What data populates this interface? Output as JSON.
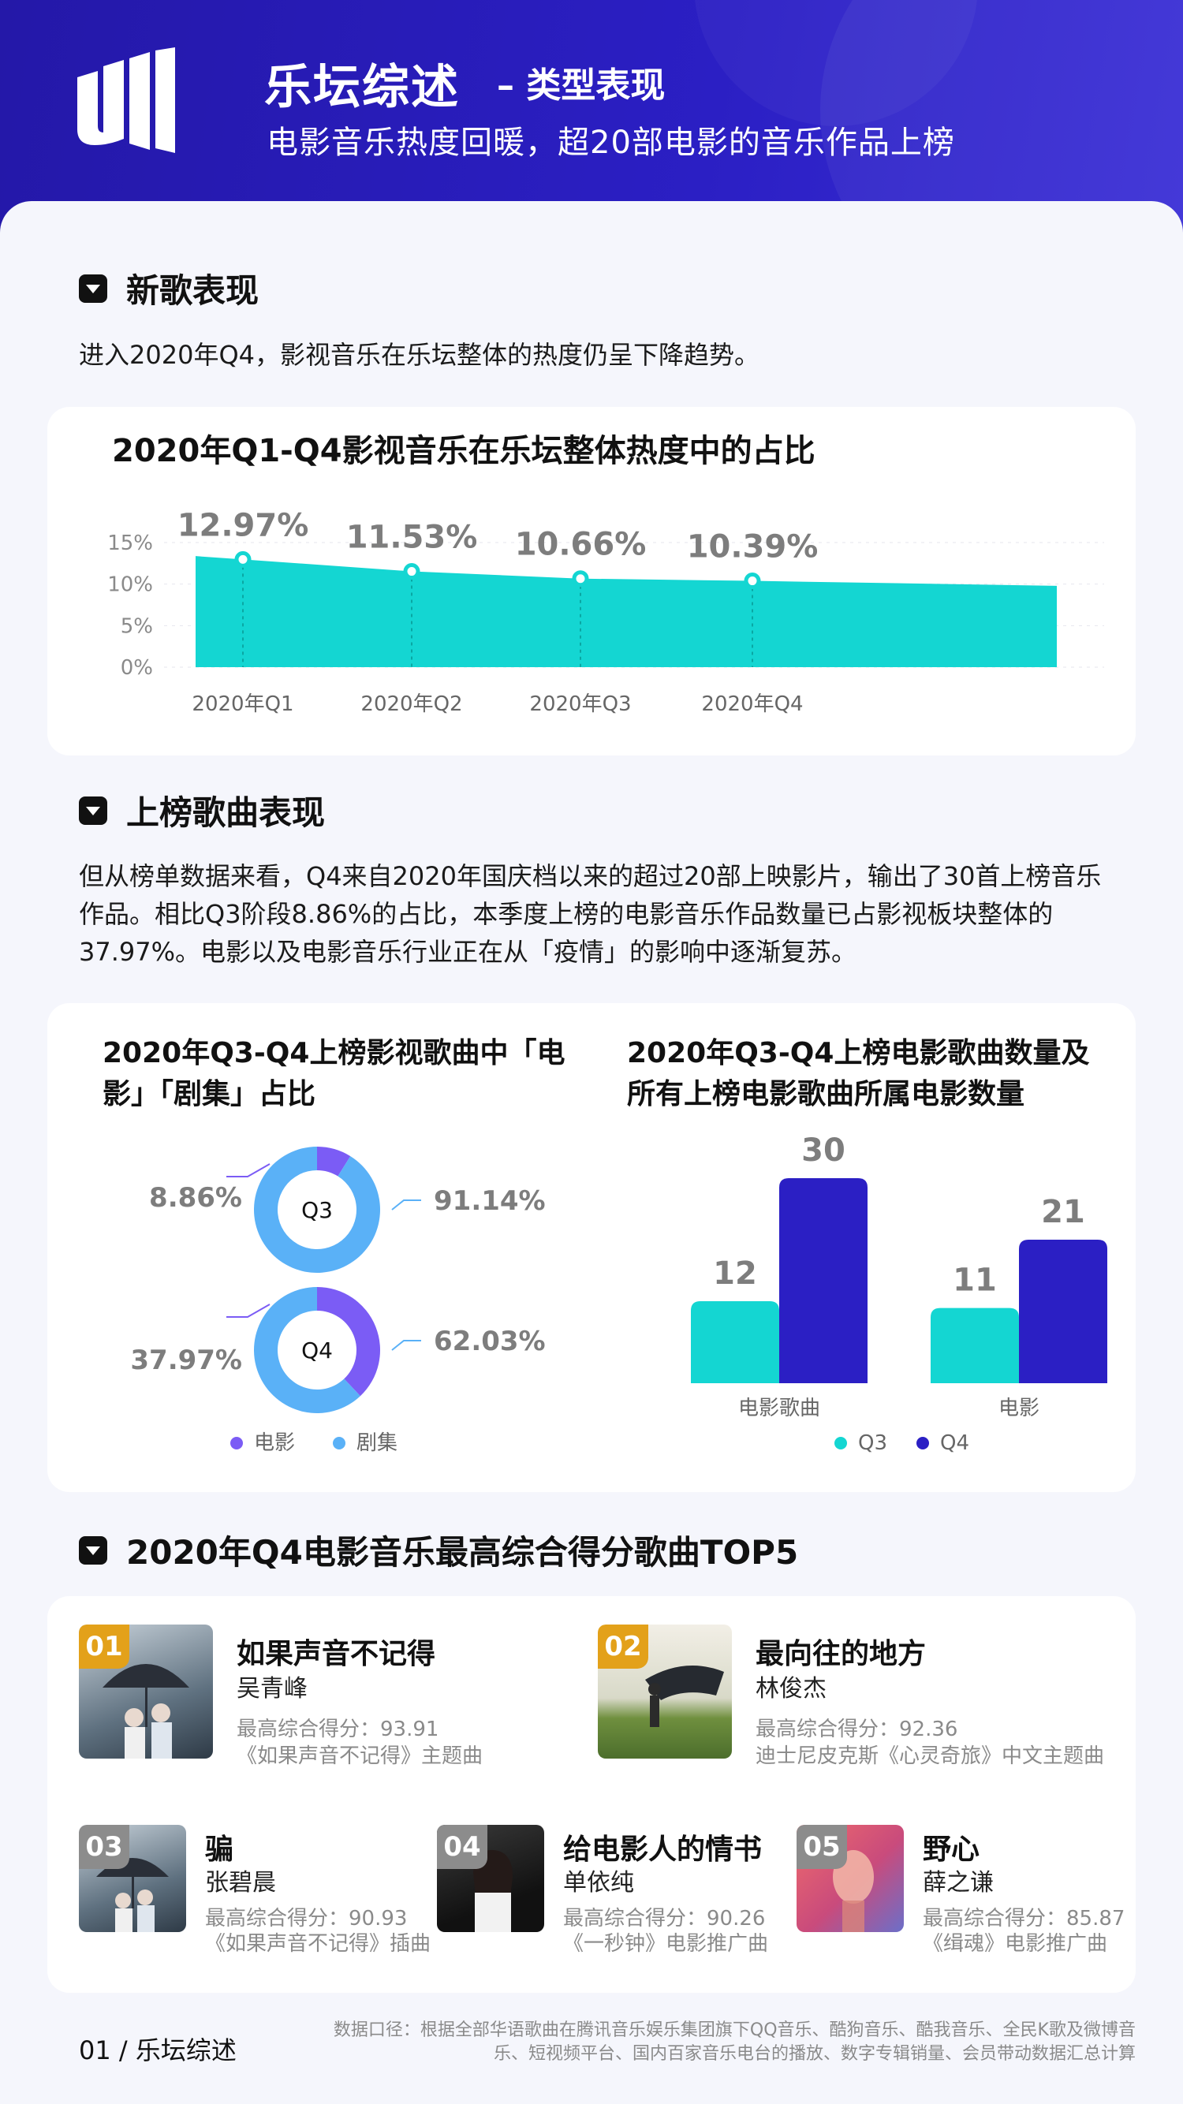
{
  "header": {
    "title": "乐坛综述",
    "subtitle_tag": "– 类型表现",
    "description": "电影音乐热度回暖，超20部电影的音乐作品上榜"
  },
  "section1": {
    "title": "新歌表现",
    "text": "进入2020年Q4，影视音乐在乐坛整体的热度仍呈下降趋势。"
  },
  "section2": {
    "title": "上榜歌曲表现",
    "text": "但从榜单数据来看，Q4来自2020年国庆档以来的超过20部上映影片，输出了30首上榜音乐作品。相比Q3阶段8.86%的占比，本季度上榜的电影音乐作品数量已占影视板块整体的37.97%。电影以及电影音乐行业正在从「疫情」的影响中逐渐复苏。"
  },
  "section3": {
    "title": "2020年Q4电影音乐最高综合得分歌曲TOP5"
  },
  "colors": {
    "brand": "#2b1fc4",
    "teal": "#14d6d2",
    "purple": "#7b5cf5",
    "light_blue": "#5ab1f7",
    "rank_gold": "#e3a11a",
    "rank_gray": "#8c8c8c"
  },
  "chart_data": [
    {
      "type": "area",
      "title": "2020年Q1-Q4影视音乐在乐坛整体热度中的占比",
      "categories": [
        "2020年Q1",
        "2020年Q2",
        "2020年Q3",
        "2020年Q4"
      ],
      "values": [
        12.97,
        11.53,
        10.66,
        10.39
      ],
      "value_labels": [
        "12.97%",
        "11.53%",
        "10.66%",
        "10.39%"
      ],
      "yticks": [
        "0%",
        "5%",
        "10%",
        "15%"
      ],
      "ylim": [
        0,
        15
      ],
      "grid": true
    },
    {
      "type": "pie",
      "title": "2020年Q3-Q4上榜影视歌曲中「电影」「剧集」占比",
      "donuts": [
        {
          "label": "Q3",
          "slices": [
            {
              "name": "电影",
              "value": 8.86,
              "label": "8.86%"
            },
            {
              "name": "剧集",
              "value": 91.14,
              "label": "91.14%"
            }
          ]
        },
        {
          "label": "Q4",
          "slices": [
            {
              "name": "电影",
              "value": 37.97,
              "label": "37.97%"
            },
            {
              "name": "剧集",
              "value": 62.03,
              "label": "62.03%"
            }
          ]
        }
      ],
      "legend": [
        "电影",
        "剧集"
      ],
      "legend_position": "bottom"
    },
    {
      "type": "bar",
      "title": "2020年Q3-Q4上榜电影歌曲数量及所有上榜电影歌曲所属电影数量",
      "categories": [
        "电影歌曲",
        "电影"
      ],
      "series": [
        {
          "name": "Q3",
          "values": [
            12,
            11
          ]
        },
        {
          "name": "Q4",
          "values": [
            30,
            21
          ]
        }
      ],
      "ylim": [
        0,
        30
      ],
      "legend_position": "bottom"
    }
  ],
  "top5": [
    {
      "rank": "01",
      "name": "如果声音不记得",
      "artist": "吴青峰",
      "score": "最高综合得分：93.91",
      "note": "《如果声音不记得》主题曲"
    },
    {
      "rank": "02",
      "name": "最向往的地方",
      "artist": "林俊杰",
      "score": "最高综合得分：92.36",
      "note": "迪士尼皮克斯《心灵奇旅》中文主题曲"
    },
    {
      "rank": "03",
      "name": "骗",
      "artist": "张碧晨",
      "score": "最高综合得分：90.93",
      "note": "《如果声音不记得》插曲"
    },
    {
      "rank": "04",
      "name": "给电影人的情书",
      "artist": "单依纯",
      "score": "最高综合得分：90.26",
      "note": "《一秒钟》电影推广曲"
    },
    {
      "rank": "05",
      "name": "野心",
      "artist": "薛之谦",
      "score": "最高综合得分：85.87",
      "note": "《缉魂》电影推广曲"
    }
  ],
  "footer": {
    "page": "01 / 乐坛综述",
    "source": "数据口径：根据全部华语歌曲在腾讯音乐娱乐集团旗下QQ音乐、酷狗音乐、酷我音乐、全民K歌及微博音乐、短视频平台、国内百家音乐电台的播放、数字专辑销量、会员带动数据汇总计算"
  }
}
